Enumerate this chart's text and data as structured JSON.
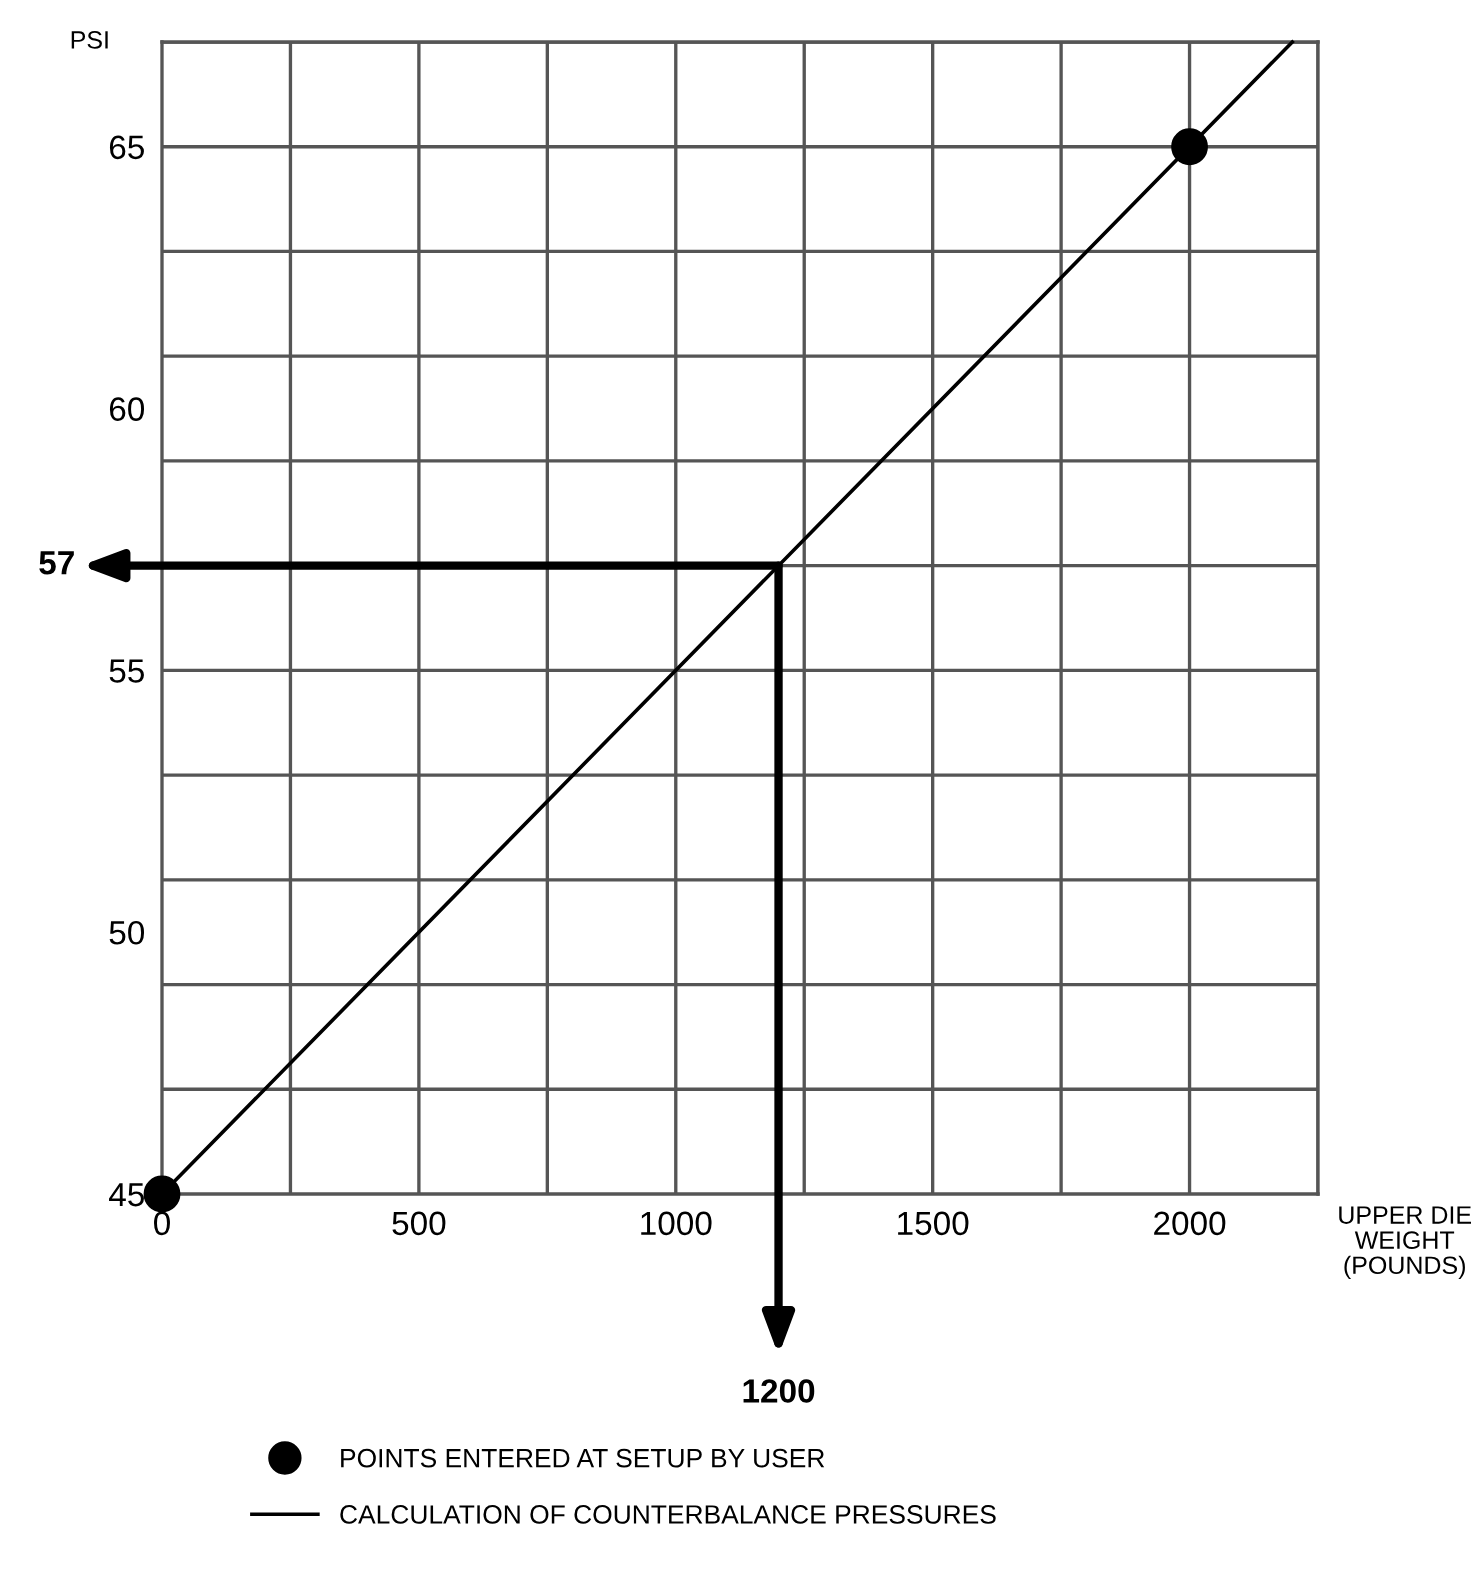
{
  "chart_data": {
    "type": "line",
    "xlabel": "UPPER DIE\nWEIGHT\n(POUNDS)",
    "ylabel": "PSI",
    "series": [
      {
        "name": "CALCULATION OF COUNTERBALANCE PRESSURES",
        "color": "#000000",
        "x": [
          0,
          2200
        ],
        "values": [
          45,
          67
        ]
      },
      {
        "name": "POINTS ENTERED AT SETUP BY USER",
        "type": "scatter",
        "marker": "circle",
        "color": "#000000",
        "x": [
          0,
          2000
        ],
        "values": [
          45,
          65
        ]
      }
    ],
    "annotations": [
      {
        "text": "57",
        "x": 1200,
        "y": 57
      },
      {
        "text": "1200",
        "x": 1200,
        "y": 57
      }
    ],
    "xlim": [
      0,
      2250
    ],
    "ylim": [
      45,
      67
    ],
    "xticks": [
      0,
      500,
      1000,
      1500,
      2000,
      {
        "value": 250,
        "label": null
      },
      {
        "value": 500,
        "label": null
      },
      {
        "value": 750,
        "label": null
      },
      {
        "value": 1000,
        "label": null
      },
      {
        "value": 1250,
        "label": null
      },
      {
        "value": 1500,
        "label": null
      },
      {
        "value": 1750,
        "label": null
      },
      {
        "value": 2000,
        "label": null
      },
      {
        "value": 2250,
        "label": null
      }
    ],
    "yticks": [
      45,
      50,
      55,
      60,
      65,
      {
        "value": 47,
        "label": null
      },
      {
        "value": 49,
        "label": null
      },
      {
        "value": 51,
        "label": null
      },
      {
        "value": 53,
        "label": null
      },
      {
        "value": 55,
        "label": null
      },
      {
        "value": 57,
        "label": null
      },
      {
        "value": 59,
        "label": null
      },
      {
        "value": 61,
        "label": null
      },
      {
        "value": 63,
        "label": null
      },
      {
        "value": 65,
        "label": null
      },
      {
        "value": 67,
        "label": null
      }
    ],
    "grid": true,
    "legend": "bottom"
  }
}
